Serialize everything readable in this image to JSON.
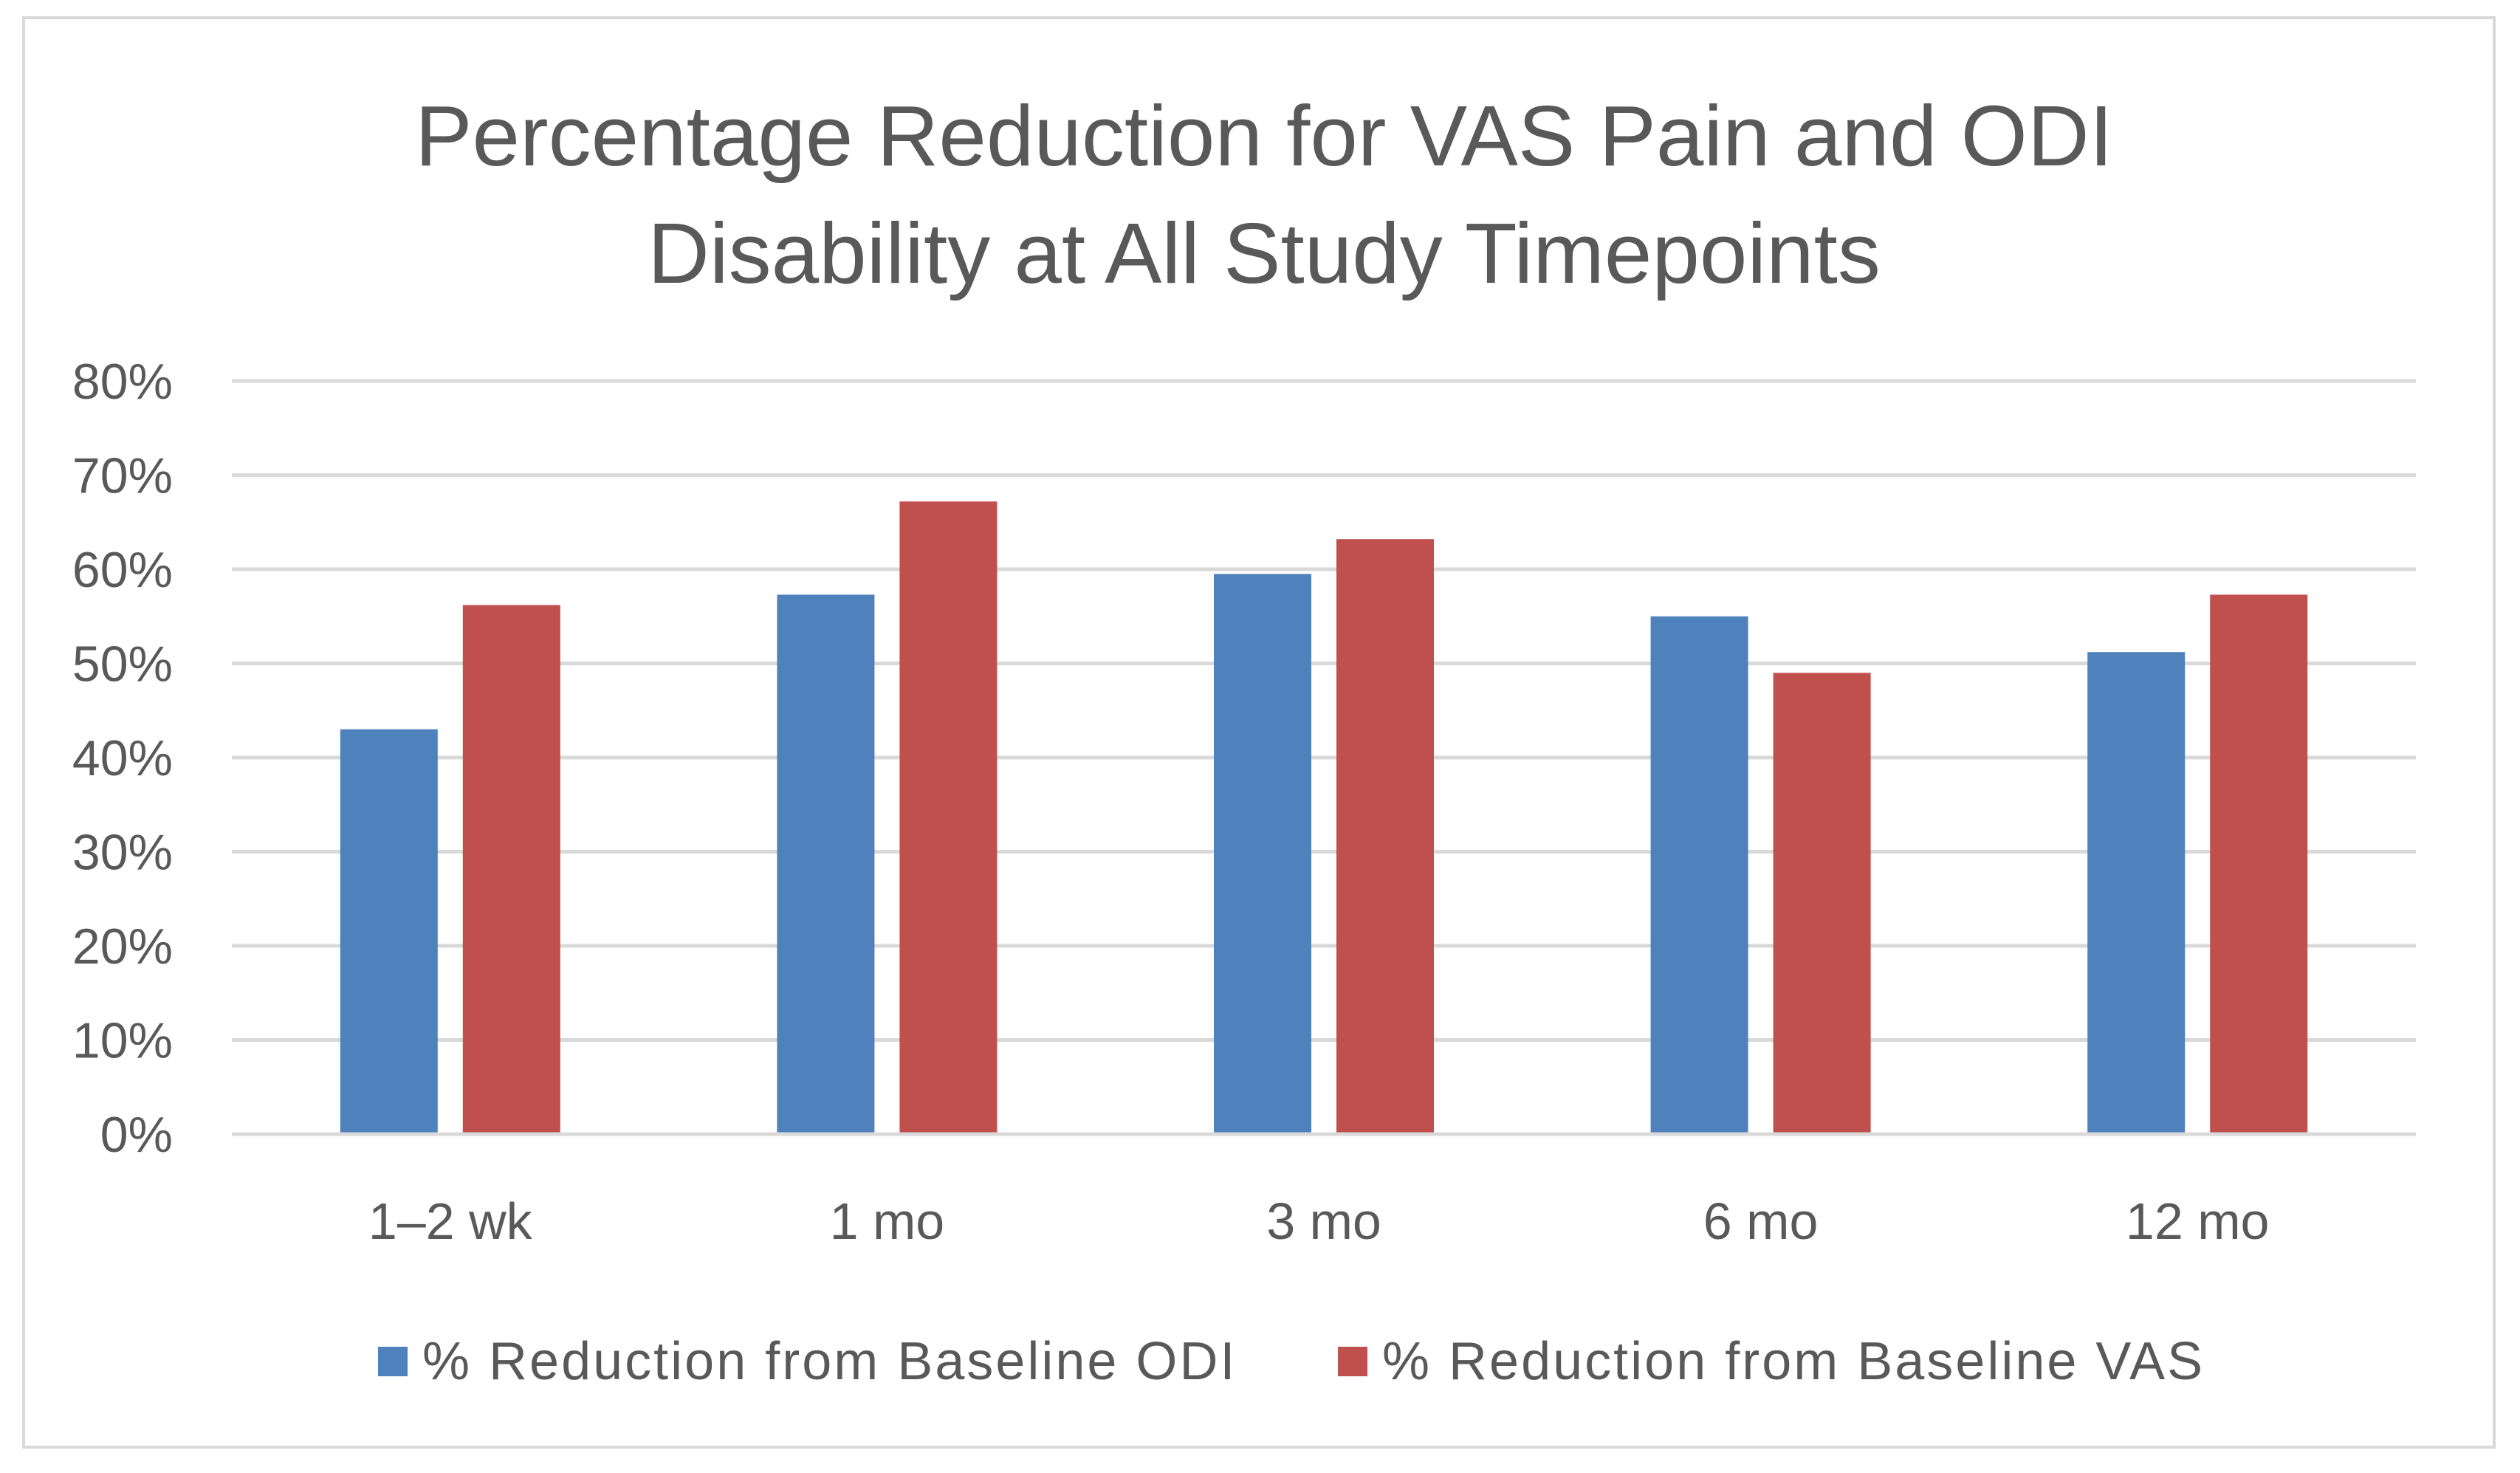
{
  "chart_data": {
    "type": "bar",
    "title_lines": [
      "Percentage Reduction for VAS Pain and ODI",
      "Disability at All Study Timepoints"
    ],
    "categories": [
      "1–2 wk",
      "1 mo",
      "3 mo",
      "6 mo",
      "12 mo"
    ],
    "series": [
      {
        "name": "% Reduction from Baseline ODI",
        "color": "#4f81bd",
        "values": [
          43,
          57.3,
          59.5,
          55,
          51.2
        ]
      },
      {
        "name": "% Reduction from Baseline VAS",
        "color": "#c0504d",
        "values": [
          56.2,
          67.2,
          63.2,
          49,
          57.3
        ]
      }
    ],
    "y_tick_labels": [
      "0%",
      "10%",
      "20%",
      "30%",
      "40%",
      "50%",
      "60%",
      "70%",
      "80%"
    ],
    "ylim": [
      0,
      80
    ],
    "y_step": 10,
    "xlabel": "",
    "ylabel": "",
    "grid": true,
    "legend_position": "bottom",
    "gridline_color": "#d9d9d9",
    "text_color": "#595959"
  }
}
